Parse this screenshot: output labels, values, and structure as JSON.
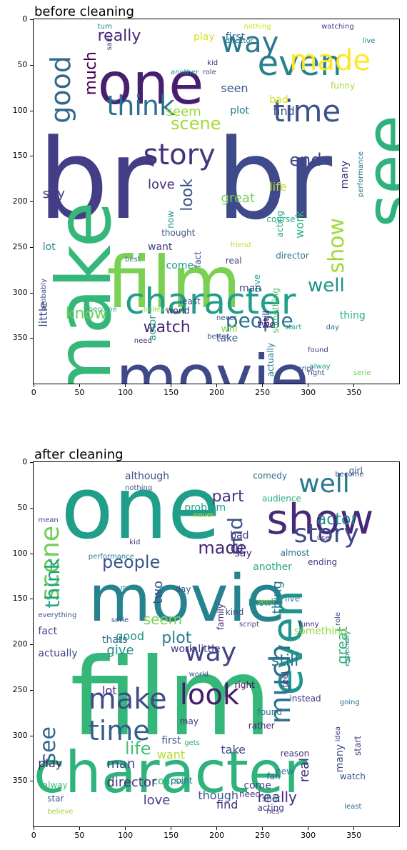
{
  "panels": [
    {
      "id": "before",
      "title": "before cleaning",
      "x_ticks": [
        "0",
        "50",
        "100",
        "150",
        "200",
        "250",
        "300",
        "350"
      ],
      "y_ticks": [
        "0",
        "50",
        "100",
        "150",
        "200",
        "250",
        "300",
        "350"
      ],
      "words": [
        {
          "text": "br",
          "color": "#433e85"
        },
        {
          "text": "br",
          "color": "#3e4a89"
        },
        {
          "text": "film",
          "color": "#7ad151"
        },
        {
          "text": "movie",
          "color": "#3e4989"
        },
        {
          "text": "one",
          "color": "#481f70"
        },
        {
          "text": "see",
          "color": "#2eb37c"
        },
        {
          "text": "make",
          "color": "#35b779"
        },
        {
          "text": "character",
          "color": "#1f9e89"
        },
        {
          "text": "even",
          "color": "#26828e"
        },
        {
          "text": "way",
          "color": "#2a788e"
        },
        {
          "text": "made",
          "color": "#fde725"
        },
        {
          "text": "good",
          "color": "#31688e"
        },
        {
          "text": "time",
          "color": "#3b528b"
        },
        {
          "text": "think",
          "color": "#2c728e"
        },
        {
          "text": "story",
          "color": "#46337e"
        },
        {
          "text": "show",
          "color": "#a0da39"
        },
        {
          "text": "people",
          "color": "#2c718e"
        },
        {
          "text": "well",
          "color": "#21908d"
        },
        {
          "text": "scene",
          "color": "#a5db36"
        },
        {
          "text": "really",
          "color": "#482576"
        },
        {
          "text": "much",
          "color": "#440154"
        },
        {
          "text": "know",
          "color": "#6ece58"
        },
        {
          "text": "watch",
          "color": "#482878"
        },
        {
          "text": "look",
          "color": "#3b528b"
        },
        {
          "text": "end",
          "color": "#414487"
        },
        {
          "text": "love",
          "color": "#472d7b"
        },
        {
          "text": "seen",
          "color": "#38588c"
        },
        {
          "text": "bad",
          "color": "#d8e219"
        },
        {
          "text": "seem",
          "color": "#9bd93c"
        },
        {
          "text": "plot",
          "color": "#297a8e"
        },
        {
          "text": "find",
          "color": "#3e4c8a"
        },
        {
          "text": "say",
          "color": "#453781"
        },
        {
          "text": "great",
          "color": "#75d054"
        },
        {
          "text": "life",
          "color": "#c2df23"
        },
        {
          "text": "first",
          "color": "#2e6f8e"
        },
        {
          "text": "play",
          "color": "#d2e21b"
        },
        {
          "text": "little",
          "color": "#3d4e8a"
        },
        {
          "text": "lot",
          "color": "#23888e"
        },
        {
          "text": "want",
          "color": "#443983"
        },
        {
          "text": "actor",
          "color": "#1fa088"
        },
        {
          "text": "take",
          "color": "#365c8d"
        },
        {
          "text": "thing",
          "color": "#2ab07f"
        },
        {
          "text": "will",
          "color": "#7fd34e"
        },
        {
          "text": "acting",
          "color": "#22a884"
        },
        {
          "text": "give",
          "color": "#1e9b8a"
        },
        {
          "text": "still",
          "color": "#481769"
        },
        {
          "text": "work",
          "color": "#31b57b"
        },
        {
          "text": "many",
          "color": "#46327e"
        },
        {
          "text": "funny",
          "color": "#a8db34"
        },
        {
          "text": "fact",
          "color": "#404688"
        },
        {
          "text": "come",
          "color": "#1f968b"
        },
        {
          "text": "now",
          "color": "#21918c"
        },
        {
          "text": "actually",
          "color": "#287d8e"
        },
        {
          "text": "two",
          "color": "#482677"
        },
        {
          "text": "man",
          "color": "#3f4889"
        },
        {
          "text": "director",
          "color": "#2a768e"
        },
        {
          "text": "thought",
          "color": "#39558c"
        },
        {
          "text": "something",
          "color": "#4ac16d"
        },
        {
          "text": "real",
          "color": "#433d84"
        },
        {
          "text": "best",
          "color": "#2c738e"
        },
        {
          "text": "course",
          "color": "#23a983"
        },
        {
          "text": "world",
          "color": "#481b6d"
        },
        {
          "text": "least",
          "color": "#3d4d8a"
        },
        {
          "text": "friend",
          "color": "#b5de2b"
        },
        {
          "text": "probably",
          "color": "#3c4f8a"
        },
        {
          "text": "become",
          "color": "#26ad81"
        },
        {
          "text": "believe",
          "color": "#8bd646"
        },
        {
          "text": "need",
          "color": "#472e7c"
        },
        {
          "text": "better",
          "color": "#3f4788"
        },
        {
          "text": "never",
          "color": "#3b528b"
        },
        {
          "text": "start",
          "color": "#1fa187"
        },
        {
          "text": "day",
          "color": "#2d708e"
        },
        {
          "text": "found",
          "color": "#453882"
        },
        {
          "text": "script",
          "color": "#3a538b"
        },
        {
          "text": "right",
          "color": "#414487"
        },
        {
          "text": "serie",
          "color": "#6ccd5a"
        },
        {
          "text": "performance",
          "color": "#2c728e"
        },
        {
          "text": "director",
          "color": "#2a788e"
        },
        {
          "text": "nothing",
          "color": "#d0e11c"
        },
        {
          "text": "watching",
          "color": "#433e85"
        },
        {
          "text": "live",
          "color": "#287c8e"
        },
        {
          "text": "kid",
          "color": "#482071"
        },
        {
          "text": "another",
          "color": "#1f988b"
        },
        {
          "text": "role",
          "color": "#3e4a89"
        },
        {
          "text": "turn",
          "color": "#26818e"
        },
        {
          "text": "said",
          "color": "#46307e"
        },
        {
          "text": "alway",
          "color": "#20a386"
        }
      ]
    },
    {
      "id": "after",
      "title": "after cleaning",
      "x_ticks": [
        "0",
        "50",
        "100",
        "150",
        "200",
        "250",
        "300",
        "350"
      ],
      "y_ticks": [
        "0",
        "50",
        "100",
        "150",
        "200",
        "250",
        "300",
        "350"
      ],
      "words": [
        {
          "text": "one",
          "color": "#1f9e89"
        },
        {
          "text": "film",
          "color": "#35b779"
        },
        {
          "text": "movie",
          "color": "#26828e"
        },
        {
          "text": "character",
          "color": "#2eb37c"
        },
        {
          "text": "show",
          "color": "#482878"
        },
        {
          "text": "well",
          "color": "#2a788e"
        },
        {
          "text": "story",
          "color": "#3e4a89"
        },
        {
          "text": "even",
          "color": "#1f968b"
        },
        {
          "text": "scene",
          "color": "#6ece58"
        },
        {
          "text": "think",
          "color": "#20a386"
        },
        {
          "text": "end",
          "color": "#3b528b"
        },
        {
          "text": "made",
          "color": "#482475"
        },
        {
          "text": "much",
          "color": "#2c728e"
        },
        {
          "text": "way",
          "color": "#414487"
        },
        {
          "text": "make",
          "color": "#3e4c8a"
        },
        {
          "text": "look",
          "color": "#481a6c"
        },
        {
          "text": "time",
          "color": "#365c8d"
        },
        {
          "text": "see",
          "color": "#31688e"
        },
        {
          "text": "people",
          "color": "#39568c"
        },
        {
          "text": "actor",
          "color": "#21918c"
        },
        {
          "text": "part",
          "color": "#453781"
        },
        {
          "text": "audience",
          "color": "#26ad81"
        },
        {
          "text": "thing",
          "color": "#2a788e"
        },
        {
          "text": "great",
          "color": "#35b779"
        },
        {
          "text": "say",
          "color": "#482777"
        },
        {
          "text": "bad",
          "color": "#46337e"
        },
        {
          "text": "lot",
          "color": "#482576"
        },
        {
          "text": "two",
          "color": "#3b528b"
        },
        {
          "text": "seem",
          "color": "#7ad151"
        },
        {
          "text": "work little",
          "color": "#443983"
        },
        {
          "text": "plot",
          "color": "#287d8e"
        },
        {
          "text": "give",
          "color": "#23888e"
        },
        {
          "text": "good",
          "color": "#21918c"
        },
        {
          "text": "fact",
          "color": "#3f4788"
        },
        {
          "text": "still",
          "color": "#2c728e"
        },
        {
          "text": "life",
          "color": "#44bf70"
        },
        {
          "text": "play",
          "color": "#481769"
        },
        {
          "text": "take",
          "color": "#3d4e8a"
        },
        {
          "text": "course",
          "color": "#2ab07f"
        },
        {
          "text": "first",
          "color": "#3a548c"
        },
        {
          "text": "director",
          "color": "#46307e"
        },
        {
          "text": "man",
          "color": "#3e4989"
        },
        {
          "text": "love",
          "color": "#433e85"
        },
        {
          "text": "though",
          "color": "#3b528b"
        },
        {
          "text": "find",
          "color": "#472d7b"
        },
        {
          "text": "really",
          "color": "#482878"
        },
        {
          "text": "come",
          "color": "#414487"
        },
        {
          "text": "real",
          "color": "#472c7a"
        },
        {
          "text": "many",
          "color": "#3c4f8a"
        },
        {
          "text": "something",
          "color": "#93d741"
        },
        {
          "text": "another",
          "color": "#22a884"
        },
        {
          "text": "know",
          "color": "#23898e"
        },
        {
          "text": "kind",
          "color": "#3f4889"
        },
        {
          "text": "family",
          "color": "#482374"
        },
        {
          "text": "acting",
          "color": "#46327e"
        },
        {
          "text": "watch",
          "color": "#3a538b"
        },
        {
          "text": "least",
          "color": "#31688e"
        },
        {
          "text": "idea",
          "color": "#453882"
        },
        {
          "text": "going",
          "color": "#2e6e8e"
        },
        {
          "text": "found",
          "color": "#2d718e"
        },
        {
          "text": "right",
          "color": "#440154"
        },
        {
          "text": "world",
          "color": "#3e4c8a"
        },
        {
          "text": "thats",
          "color": "#2d708e"
        },
        {
          "text": "actually",
          "color": "#404588"
        },
        {
          "text": "want",
          "color": "#b5de2b"
        },
        {
          "text": "day",
          "color": "#39558c"
        },
        {
          "text": "feel",
          "color": "#433d84"
        },
        {
          "text": "although",
          "color": "#3d4d8a"
        },
        {
          "text": "performance",
          "color": "#26828e"
        },
        {
          "text": "may",
          "color": "#472f7d"
        },
        {
          "text": "live",
          "color": "#2a768e"
        },
        {
          "text": "girl",
          "color": "#3b518b"
        },
        {
          "text": "problem",
          "color": "#1fa088"
        },
        {
          "text": "reason",
          "color": "#46307e"
        },
        {
          "text": "gets",
          "color": "#25ab82"
        },
        {
          "text": "seen",
          "color": "#a8db34"
        },
        {
          "text": "funny",
          "color": "#482071"
        },
        {
          "text": "comedy",
          "color": "#2d708e"
        },
        {
          "text": "become",
          "color": "#3f4889"
        },
        {
          "text": "use",
          "color": "#472e7c"
        },
        {
          "text": "new",
          "color": "#297a8e"
        },
        {
          "text": "music",
          "color": "#1f948c"
        },
        {
          "text": "nothing",
          "color": "#3d4e8a"
        },
        {
          "text": "start",
          "color": "#46327e"
        },
        {
          "text": "kid",
          "color": "#472c7a"
        },
        {
          "text": "serie",
          "color": "#3c4f8a"
        },
        {
          "text": "script",
          "color": "#433e85"
        },
        {
          "text": "point",
          "color": "#2c728e"
        },
        {
          "text": "need",
          "color": "#443983"
        },
        {
          "text": "fan",
          "color": "#38588c"
        },
        {
          "text": "shot",
          "color": "#2a768e"
        },
        {
          "text": "star",
          "color": "#3b528b"
        },
        {
          "text": "instead",
          "color": "#46327e"
        },
        {
          "text": "rather",
          "color": "#482576"
        },
        {
          "text": "alway",
          "color": "#38b977"
        },
        {
          "text": "hes",
          "color": "#482878"
        },
        {
          "text": "almost",
          "color": "#2e6f8e"
        },
        {
          "text": "mean",
          "color": "#414487"
        },
        {
          "text": "especially",
          "color": "#24868e"
        },
        {
          "text": "never",
          "color": "#b8de29"
        },
        {
          "text": "believe",
          "color": "#9bd93c"
        },
        {
          "text": "everything",
          "color": "#3a538b"
        },
        {
          "text": "role",
          "color": "#3e4a89"
        },
        {
          "text": "ending",
          "color": "#443a83"
        }
      ]
    }
  ]
}
